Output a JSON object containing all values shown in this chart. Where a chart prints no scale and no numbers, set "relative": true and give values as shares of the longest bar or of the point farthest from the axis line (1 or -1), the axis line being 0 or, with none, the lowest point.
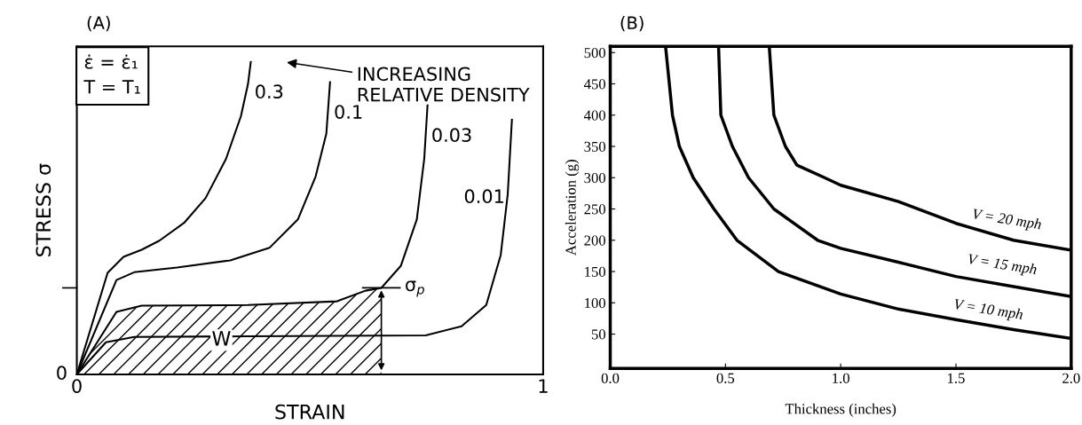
{
  "chart_data": [
    {
      "type": "line",
      "title": "(A)",
      "xlabel": "STRAIN",
      "ylabel": "STRESS σ",
      "relative": true,
      "xlim": [
        0,
        1
      ],
      "xticks": [
        0,
        1
      ],
      "grid": false,
      "marker": "none",
      "line_style": "solid",
      "series": [
        {
          "name": "0.3",
          "color": "#000000",
          "x": [
            0,
            0.066,
            0.1,
            0.139,
            0.177,
            0.23,
            0.276,
            0.32,
            0.352,
            0.367,
            0.373
          ],
          "values": [
            0,
            0.325,
            0.376,
            0.399,
            0.428,
            0.485,
            0.564,
            0.69,
            0.827,
            0.929,
            1.0
          ]
        },
        {
          "name": "0.1",
          "color": "#000000",
          "x": [
            0,
            0.085,
            0.123,
            0.215,
            0.329,
            0.413,
            0.474,
            0.512,
            0.535,
            0.543
          ],
          "values": [
            0,
            0.302,
            0.327,
            0.342,
            0.365,
            0.405,
            0.496,
            0.633,
            0.77,
            0.935
          ]
        },
        {
          "name": "0.03",
          "color": "#000000",
          "x": [
            0,
            0.085,
            0.139,
            0.367,
            0.558,
            0.619,
            0.653,
            0.695,
            0.729,
            0.745,
            0.752
          ],
          "values": [
            0,
            0.2,
            0.22,
            0.222,
            0.234,
            0.268,
            0.277,
            0.348,
            0.496,
            0.69,
            0.861
          ]
        },
        {
          "name": "0.01",
          "color": "#000000",
          "x": [
            0,
            0.0625,
            0.123,
            0.367,
            0.748,
            0.825,
            0.878,
            0.909,
            0.924,
            0.933
          ],
          "values": [
            0,
            0.103,
            0.12,
            0.122,
            0.125,
            0.154,
            0.222,
            0.382,
            0.576,
            0.815
          ]
        },
        {
          "type": "area",
          "color": "#000000",
          "x": [
            0,
            0.085,
            0.139,
            0.367,
            0.558,
            0.619,
            0.653
          ],
          "values": [
            0,
            0.2,
            0.22,
            0.222,
            0.234,
            0.268,
            0.277
          ]
        }
      ],
      "annotations": [
        "0",
        "ε̇ = ε̇₁\nT = T₁",
        "INCREASING\nRELATIVE DENSITY",
        {
          "text": "σ$_{p}$",
          "x": 0.653,
          "y": 0.277
        },
        {
          "text": "W",
          "x": 0.31,
          "y": 0.11
        }
      ]
    },
    {
      "type": "line",
      "title": "(B)",
      "xlabel": "Thickness (inches)",
      "ylabel": "Acceleration (g)",
      "xlim": [
        0,
        2
      ],
      "ylim": [
        -5,
        510
      ],
      "xticks": [
        {
          "value": 0,
          "label": "0.0"
        },
        {
          "value": 0.5,
          "label": "0.5"
        },
        {
          "value": 1,
          "label": "1.0"
        },
        {
          "value": 1.5,
          "label": "1.5"
        },
        {
          "value": 2,
          "label": "2.0"
        }
      ],
      "yticks": [
        50,
        100,
        150,
        200,
        250,
        300,
        350,
        400,
        450,
        500
      ],
      "grid": false,
      "marker": "none",
      "line_style": "solid",
      "series": [
        {
          "color": "#000000",
          "x": [
            0.24,
            0.27,
            0.3,
            0.36,
            0.45,
            0.55,
            0.73,
            1.0,
            1.25,
            1.5,
            1.75,
            2.0
          ],
          "values": [
            510,
            400,
            350,
            300,
            250,
            200,
            150,
            114,
            90,
            73,
            57,
            43
          ]
        },
        {
          "color": "#000000",
          "x": [
            0.47,
            0.48,
            0.53,
            0.6,
            0.71,
            0.9,
            1.0,
            1.25,
            1.5,
            1.75,
            2.0
          ],
          "values": [
            510,
            400,
            350,
            300,
            250,
            200,
            187,
            165,
            142,
            126,
            110
          ]
        },
        {
          "color": "#000000",
          "x": [
            0.69,
            0.71,
            0.76,
            0.81,
            0.93,
            1.0,
            1.25,
            1.5,
            1.75,
            2.0
          ],
          "values": [
            510,
            400,
            350,
            320,
            300,
            288,
            262,
            227,
            200,
            184
          ]
        }
      ],
      "annotations": [
        "V = 20 mph",
        "V = 15 mph",
        "V = 10 mph"
      ]
    }
  ]
}
